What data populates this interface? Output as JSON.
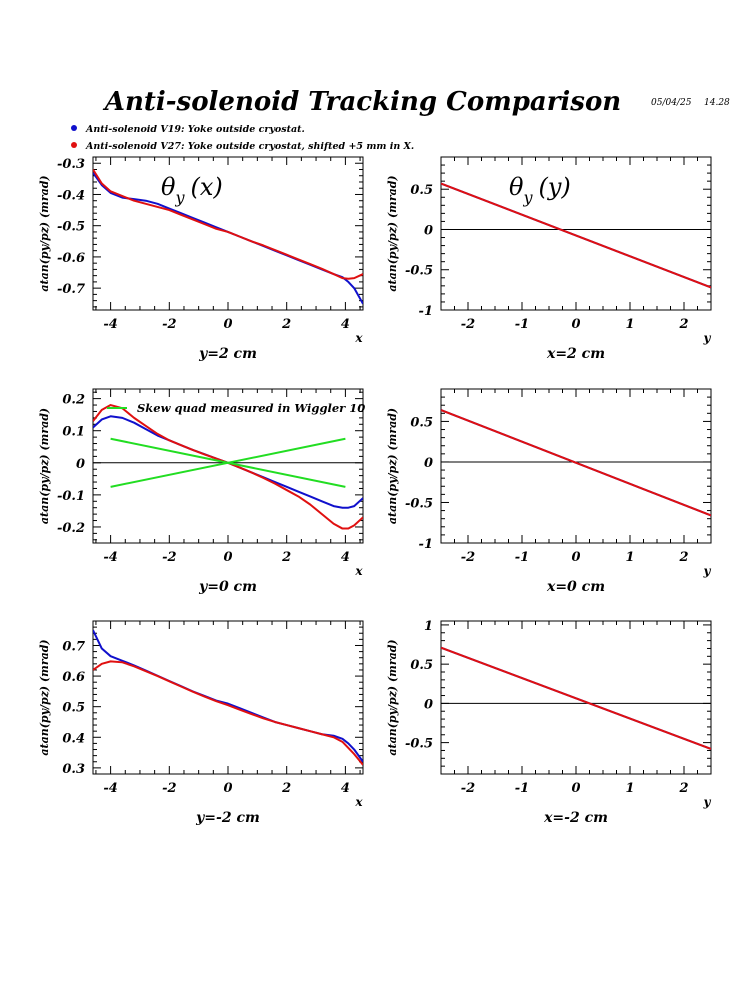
{
  "header": {
    "title": "Anti-solenoid Tracking Comparison",
    "date": "05/04/25",
    "time": "14.28"
  },
  "legend": [
    {
      "label": "Anti-solenoid V19: Yoke outside cryostat.",
      "color": "#1010cc"
    },
    {
      "label": "Anti-solenoid V27: Yoke outside cryostat, shifted +5 mm in X.",
      "color": "#e01010"
    }
  ],
  "colors": {
    "v19": "#1010cc",
    "v27": "#e01010",
    "skew": "#22dd22",
    "zero": "#000000"
  },
  "chart_data": [
    {
      "type": "line",
      "panel": "left-top",
      "heading": "θy (x)",
      "xname": "x",
      "xlabel": "y=2 cm",
      "ylabel": "atan(py/pz) (mrad)",
      "xlim": [
        -4.6,
        4.6
      ],
      "ylim": [
        -0.77,
        -0.28
      ],
      "xticks": [
        "-4",
        "-2",
        "0",
        "2",
        "4"
      ],
      "yticks": [
        "-0.3",
        "-0.4",
        "-0.5",
        "-0.6",
        "-0.7"
      ],
      "series": [
        {
          "color": "#1010cc",
          "x": [
            -4.6,
            -4.3,
            -4.0,
            -3.6,
            -3.2,
            -2.8,
            -2.4,
            -2.0,
            -1.6,
            -1.2,
            -0.8,
            -0.4,
            0.0,
            0.4,
            0.8,
            1.2,
            1.6,
            2.0,
            2.4,
            2.8,
            3.2,
            3.6,
            3.9,
            4.1,
            4.3,
            4.6
          ],
          "y": [
            -0.33,
            -0.37,
            -0.395,
            -0.41,
            -0.415,
            -0.42,
            -0.43,
            -0.445,
            -0.46,
            -0.475,
            -0.49,
            -0.505,
            -0.52,
            -0.535,
            -0.55,
            -0.565,
            -0.58,
            -0.595,
            -0.61,
            -0.625,
            -0.64,
            -0.655,
            -0.665,
            -0.68,
            -0.7,
            -0.75
          ]
        },
        {
          "color": "#e01010",
          "x": [
            -4.6,
            -4.3,
            -4.0,
            -3.6,
            -3.2,
            -2.8,
            -2.4,
            -2.0,
            -1.6,
            -1.2,
            -0.8,
            -0.4,
            0.0,
            0.4,
            0.8,
            1.2,
            1.6,
            2.0,
            2.4,
            2.8,
            3.2,
            3.6,
            3.9,
            4.1,
            4.3,
            4.6
          ],
          "y": [
            -0.32,
            -0.365,
            -0.39,
            -0.405,
            -0.42,
            -0.43,
            -0.44,
            -0.45,
            -0.465,
            -0.48,
            -0.495,
            -0.51,
            -0.52,
            -0.535,
            -0.55,
            -0.563,
            -0.578,
            -0.593,
            -0.608,
            -0.623,
            -0.638,
            -0.655,
            -0.668,
            -0.67,
            -0.668,
            -0.655
          ]
        }
      ]
    },
    {
      "type": "line",
      "panel": "right-top",
      "heading": "θy (y)",
      "xname": "y",
      "xlabel": "x=2 cm",
      "ylabel": "atan(py/pz) (mrad)",
      "xlim": [
        -2.5,
        2.5
      ],
      "ylim": [
        -1.0,
        0.9
      ],
      "xticks": [
        "-2",
        "-1",
        "0",
        "1",
        "2"
      ],
      "yticks": [
        "0.5",
        "0",
        "-0.5",
        "-1"
      ],
      "zero_line": true,
      "series": [
        {
          "color": "#1010cc",
          "x": [
            -2.5,
            2.5
          ],
          "y": [
            0.57,
            -0.72
          ]
        },
        {
          "color": "#e01010",
          "x": [
            -2.5,
            2.5
          ],
          "y": [
            0.57,
            -0.72
          ]
        }
      ]
    },
    {
      "type": "line",
      "panel": "left-middle",
      "heading": "",
      "annotation": "Skew quad measured in Wiggler 10",
      "xname": "x",
      "xlabel": "y=0 cm",
      "ylabel": "atan(py/pz) (mrad)",
      "xlim": [
        -4.6,
        4.6
      ],
      "ylim": [
        -0.25,
        0.23
      ],
      "xticks": [
        "-4",
        "-2",
        "0",
        "2",
        "4"
      ],
      "yticks": [
        "0.2",
        "0.1",
        "0",
        "-0.1",
        "-0.2"
      ],
      "zero_line": true,
      "series": [
        {
          "color": "#1010cc",
          "x": [
            -4.6,
            -4.3,
            -4.0,
            -3.6,
            -3.2,
            -2.8,
            -2.4,
            -2.0,
            -1.6,
            -1.2,
            -0.8,
            -0.4,
            0.0,
            0.4,
            0.8,
            1.2,
            1.6,
            2.0,
            2.4,
            2.8,
            3.2,
            3.6,
            3.9,
            4.1,
            4.3,
            4.6
          ],
          "y": [
            0.11,
            0.135,
            0.145,
            0.14,
            0.125,
            0.105,
            0.085,
            0.07,
            0.055,
            0.04,
            0.027,
            0.013,
            0.0,
            -0.015,
            -0.03,
            -0.045,
            -0.06,
            -0.075,
            -0.09,
            -0.105,
            -0.12,
            -0.135,
            -0.14,
            -0.14,
            -0.135,
            -0.11
          ]
        },
        {
          "color": "#e01010",
          "x": [
            -4.6,
            -4.3,
            -4.0,
            -3.6,
            -3.2,
            -2.8,
            -2.4,
            -2.0,
            -1.6,
            -1.2,
            -0.8,
            -0.4,
            0.0,
            0.4,
            0.8,
            1.2,
            1.6,
            2.0,
            2.4,
            2.8,
            3.2,
            3.6,
            3.9,
            4.1,
            4.3,
            4.6
          ],
          "y": [
            0.13,
            0.165,
            0.18,
            0.17,
            0.14,
            0.115,
            0.09,
            0.07,
            0.055,
            0.04,
            0.026,
            0.013,
            0.0,
            -0.015,
            -0.03,
            -0.047,
            -0.065,
            -0.085,
            -0.105,
            -0.13,
            -0.16,
            -0.19,
            -0.205,
            -0.205,
            -0.195,
            -0.17
          ]
        },
        {
          "color": "#22dd22",
          "x": [
            -4.0,
            4.0
          ],
          "y": [
            0.075,
            -0.075
          ]
        },
        {
          "color": "#22dd22",
          "x": [
            -4.0,
            4.0
          ],
          "y": [
            -0.075,
            0.075
          ]
        }
      ]
    },
    {
      "type": "line",
      "panel": "right-middle",
      "heading": "",
      "xname": "y",
      "xlabel": "x=0 cm",
      "ylabel": "atan(py/pz) (mrad)",
      "xlim": [
        -2.5,
        2.5
      ],
      "ylim": [
        -1.0,
        0.9
      ],
      "xticks": [
        "-2",
        "-1",
        "0",
        "1",
        "2"
      ],
      "yticks": [
        "0.5",
        "0",
        "-0.5",
        "-1"
      ],
      "zero_line": true,
      "series": [
        {
          "color": "#1010cc",
          "x": [
            -2.5,
            2.5
          ],
          "y": [
            0.64,
            -0.66
          ]
        },
        {
          "color": "#e01010",
          "x": [
            -2.5,
            2.5
          ],
          "y": [
            0.64,
            -0.66
          ]
        }
      ]
    },
    {
      "type": "line",
      "panel": "left-bottom",
      "heading": "",
      "xname": "x",
      "xlabel": "y=-2 cm",
      "ylabel": "atan(py/pz) (mrad)",
      "xlim": [
        -4.6,
        4.6
      ],
      "ylim": [
        0.28,
        0.78
      ],
      "xticks": [
        "-4",
        "-2",
        "0",
        "2",
        "4"
      ],
      "yticks": [
        "0.7",
        "0.6",
        "0.5",
        "0.4",
        "0.3"
      ],
      "series": [
        {
          "color": "#1010cc",
          "x": [
            -4.6,
            -4.3,
            -4.0,
            -3.6,
            -3.2,
            -2.8,
            -2.4,
            -2.0,
            -1.6,
            -1.2,
            -0.8,
            -0.4,
            0.0,
            0.4,
            0.8,
            1.2,
            1.6,
            2.0,
            2.4,
            2.8,
            3.2,
            3.6,
            3.9,
            4.1,
            4.3,
            4.6
          ],
          "y": [
            0.75,
            0.69,
            0.665,
            0.65,
            0.635,
            0.618,
            0.601,
            0.584,
            0.567,
            0.55,
            0.535,
            0.52,
            0.51,
            0.495,
            0.48,
            0.465,
            0.45,
            0.44,
            0.43,
            0.42,
            0.41,
            0.405,
            0.395,
            0.38,
            0.36,
            0.32
          ]
        },
        {
          "color": "#e01010",
          "x": [
            -4.6,
            -4.3,
            -4.0,
            -3.6,
            -3.2,
            -2.8,
            -2.4,
            -2.0,
            -1.6,
            -1.2,
            -0.8,
            -0.4,
            0.0,
            0.4,
            0.8,
            1.2,
            1.6,
            2.0,
            2.4,
            2.8,
            3.2,
            3.6,
            3.9,
            4.1,
            4.3,
            4.6
          ],
          "y": [
            0.62,
            0.64,
            0.648,
            0.645,
            0.632,
            0.616,
            0.6,
            0.583,
            0.566,
            0.549,
            0.533,
            0.518,
            0.505,
            0.49,
            0.476,
            0.462,
            0.45,
            0.44,
            0.43,
            0.42,
            0.41,
            0.4,
            0.385,
            0.365,
            0.345,
            0.31
          ]
        }
      ]
    },
    {
      "type": "line",
      "panel": "right-bottom",
      "heading": "",
      "xname": "y",
      "xlabel": "x=-2 cm",
      "ylabel": "atan(py/pz) (mrad)",
      "xlim": [
        -2.5,
        2.5
      ],
      "ylim": [
        -0.9,
        1.05
      ],
      "xticks": [
        "-2",
        "-1",
        "0",
        "1",
        "2"
      ],
      "yticks": [
        "1",
        "0.5",
        "0",
        "-0.5"
      ],
      "zero_line": true,
      "series": [
        {
          "color": "#1010cc",
          "x": [
            -2.5,
            2.5
          ],
          "y": [
            0.71,
            -0.58
          ]
        },
        {
          "color": "#e01010",
          "x": [
            -2.5,
            2.5
          ],
          "y": [
            0.71,
            -0.58
          ]
        }
      ]
    }
  ]
}
